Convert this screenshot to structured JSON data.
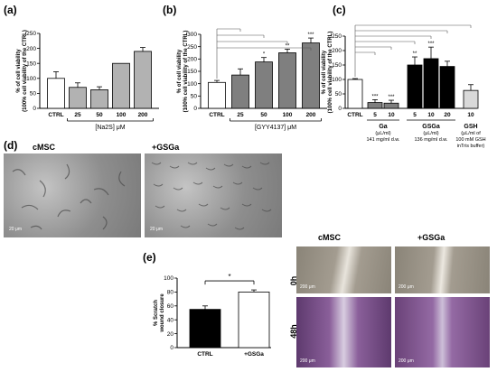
{
  "panels": {
    "a": "(a)",
    "b": "(b)",
    "c": "(c)",
    "d": "(d)",
    "e": "(e)"
  },
  "chart_data": [
    {
      "id": "a",
      "type": "bar",
      "ylabel": "% of cell viability (100% cell viability of the CTRL)",
      "ylim": [
        0,
        250
      ],
      "yticks": [
        0,
        50,
        100,
        150,
        200,
        250
      ],
      "categories": [
        "CTRL",
        "25",
        "50",
        "100",
        "200"
      ],
      "values": [
        100,
        70,
        62,
        150,
        190
      ],
      "errors": [
        22,
        15,
        10,
        0,
        13
      ],
      "colors": [
        "#ffffff",
        "#b2b2b2",
        "#b2b2b2",
        "#b2b2b2",
        "#b2b2b2"
      ],
      "xlabel": "[Na2S] μM",
      "sig": []
    },
    {
      "id": "b",
      "type": "bar",
      "ylabel": "% of cell viability (100% cell viability of the CTRL)",
      "ylim": [
        0,
        300
      ],
      "yticks": [
        0,
        50,
        100,
        150,
        200,
        250,
        300
      ],
      "categories": [
        "CTRL",
        "25",
        "50",
        "100",
        "200"
      ],
      "values": [
        105,
        135,
        188,
        225,
        265
      ],
      "errors": [
        8,
        25,
        18,
        15,
        20
      ],
      "colors": [
        "#ffffff",
        "#7f7f7f",
        "#7f7f7f",
        "#7f7f7f",
        "#7f7f7f"
      ],
      "xlabel": "[GYY4137] μM",
      "sig": [
        "",
        "",
        "*",
        "**",
        "***"
      ]
    },
    {
      "id": "c",
      "type": "bar",
      "ylabel": "% of cell viability (100% cell viability of the CTRL)",
      "ylim": [
        0,
        250
      ],
      "yticks": [
        0,
        50,
        100,
        150,
        200,
        250
      ],
      "categories": [
        "CTRL",
        "5",
        "10",
        "5",
        "10",
        "20",
        "10"
      ],
      "values": [
        100,
        20,
        18,
        150,
        172,
        145,
        62
      ],
      "errors": [
        3,
        10,
        10,
        28,
        40,
        18,
        20
      ],
      "colors": [
        "#ffffff",
        "#7f7f7f",
        "#7f7f7f",
        "#000000",
        "#000000",
        "#000000",
        "#d9d9d9"
      ],
      "sig": [
        "",
        "***",
        "***",
        "**",
        "***",
        "",
        ""
      ],
      "groups": [
        {
          "name": "Ga",
          "unit": "(μL/ml)",
          "note": "141 mg/ml d.w."
        },
        {
          "name": "GSGa",
          "unit": "(μL/ml)",
          "note": "136 mg/ml d.w."
        },
        {
          "name": "GSH",
          "unit": "(μL/ml of",
          "note": "100 mM GSH",
          "note2": "inTris buffer)"
        }
      ]
    },
    {
      "id": "e",
      "type": "bar",
      "ylabel": "% Scratch wound closure",
      "ylim": [
        0,
        100
      ],
      "yticks": [
        0,
        20,
        40,
        60,
        80,
        100
      ],
      "categories": [
        "CTRL",
        "+GSGa"
      ],
      "values": [
        55,
        80
      ],
      "errors": [
        5,
        3
      ],
      "colors": [
        "#000000",
        "#ffffff"
      ],
      "sig_label": "*"
    }
  ],
  "images": {
    "d": {
      "left_title": "cMSC",
      "right_title": "+GSGa",
      "scale": "20 μm"
    },
    "scratch": {
      "col1": "cMSC",
      "col2": "+GSGa",
      "row1": "0h",
      "row2": "48h",
      "scale": "200 μm"
    }
  }
}
